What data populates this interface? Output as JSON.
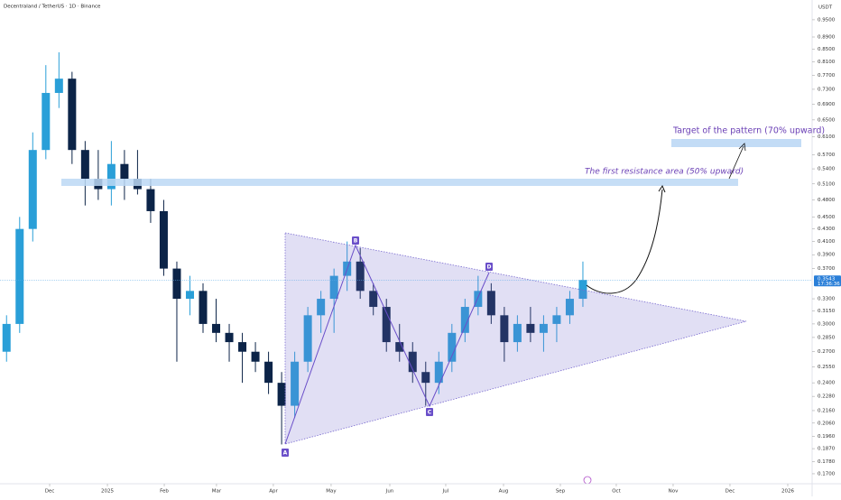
{
  "chart_data": {
    "type": "candlestick",
    "title": "Decentraland / TetherUS · 1D · Binance",
    "y_axis_label": "USDT",
    "log_scale": true,
    "grid": false,
    "up_color": "#2a9fd8",
    "down_color": "#0c2448",
    "categories": [
      null,
      null,
      null,
      null,
      null,
      null,
      null,
      null,
      null,
      null,
      null,
      null,
      null,
      null,
      null,
      null,
      null,
      null,
      null,
      null,
      null,
      null,
      null,
      null,
      null,
      null,
      null,
      null,
      null,
      null,
      null,
      null,
      null,
      null,
      null,
      null,
      null,
      null,
      null,
      null,
      null,
      null,
      null,
      null,
      null
    ],
    "open": [
      0.27,
      0.3,
      0.43,
      0.58,
      0.72,
      0.76,
      0.58,
      0.52,
      0.5,
      0.55,
      0.52,
      0.5,
      0.46,
      0.37,
      0.33,
      0.34,
      0.3,
      0.29,
      0.28,
      0.27,
      0.26,
      0.24,
      0.22,
      0.26,
      0.31,
      0.33,
      0.36,
      0.38,
      0.34,
      0.32,
      0.28,
      0.27,
      0.25,
      0.24,
      0.26,
      0.29,
      0.32,
      0.34,
      0.31,
      0.28,
      0.3,
      0.29,
      0.3,
      0.31,
      0.33
    ],
    "high": [
      0.31,
      0.45,
      0.62,
      0.8,
      0.84,
      0.78,
      0.6,
      0.58,
      0.6,
      0.58,
      0.58,
      0.52,
      0.48,
      0.38,
      0.36,
      0.35,
      0.33,
      0.3,
      0.29,
      0.28,
      0.27,
      0.25,
      0.27,
      0.32,
      0.34,
      0.37,
      0.41,
      0.4,
      0.35,
      0.33,
      0.3,
      0.28,
      0.26,
      0.27,
      0.3,
      0.33,
      0.36,
      0.35,
      0.32,
      0.31,
      0.32,
      0.31,
      0.32,
      0.34,
      0.38
    ],
    "low": [
      0.26,
      0.29,
      0.41,
      0.56,
      0.68,
      0.55,
      0.47,
      0.48,
      0.47,
      0.48,
      0.49,
      0.44,
      0.36,
      0.26,
      0.31,
      0.29,
      0.28,
      0.26,
      0.24,
      0.25,
      0.23,
      0.19,
      0.21,
      0.25,
      0.29,
      0.29,
      0.34,
      0.33,
      0.31,
      0.27,
      0.26,
      0.24,
      0.22,
      0.23,
      0.25,
      0.28,
      0.31,
      0.3,
      0.26,
      0.27,
      0.28,
      0.27,
      0.28,
      0.3,
      0.32
    ],
    "close": [
      0.3,
      0.43,
      0.58,
      0.72,
      0.76,
      0.58,
      0.52,
      0.5,
      0.55,
      0.52,
      0.5,
      0.46,
      0.37,
      0.33,
      0.34,
      0.3,
      0.29,
      0.28,
      0.27,
      0.26,
      0.24,
      0.22,
      0.26,
      0.31,
      0.33,
      0.36,
      0.38,
      0.34,
      0.32,
      0.28,
      0.27,
      0.25,
      0.24,
      0.26,
      0.29,
      0.32,
      0.34,
      0.31,
      0.28,
      0.3,
      0.29,
      0.3,
      0.31,
      0.33,
      0.3543
    ],
    "xlim": [
      -0.5,
      61.5
    ],
    "xticks": [
      {
        "value": 3.29,
        "label": "Dec"
      },
      {
        "value": 7.7,
        "label": "2025"
      },
      {
        "value": 12.04,
        "label": "Feb"
      },
      {
        "value": 16.03,
        "label": "Mar"
      },
      {
        "value": 20.37,
        "label": "Apr"
      },
      {
        "value": 24.78,
        "label": "May"
      },
      {
        "value": 29.26,
        "label": "Jun"
      },
      {
        "value": 33.53,
        "label": "Jul"
      },
      {
        "value": 37.94,
        "label": "Aug"
      },
      {
        "value": 42.28,
        "label": "Sep"
      },
      {
        "value": 46.55,
        "label": "Oct"
      },
      {
        "value": 50.89,
        "label": "Nov"
      },
      {
        "value": 55.23,
        "label": "Dec"
      },
      {
        "value": 59.64,
        "label": "2026"
      }
    ],
    "ylim": [
      0.1637,
      1.024
    ],
    "yticks": [
      {
        "value": 0.95,
        "label": "0.9500"
      },
      {
        "value": 0.89,
        "label": "0.8900"
      },
      {
        "value": 0.85,
        "label": "0.8500"
      },
      {
        "value": 0.81,
        "label": "0.8100"
      },
      {
        "value": 0.77,
        "label": "0.7700"
      },
      {
        "value": 0.73,
        "label": "0.7300"
      },
      {
        "value": 0.69,
        "label": "0.6900"
      },
      {
        "value": 0.65,
        "label": "0.6500"
      },
      {
        "value": 0.61,
        "label": "0.6100"
      },
      {
        "value": 0.57,
        "label": "0.5700"
      },
      {
        "value": 0.54,
        "label": "0.5400"
      },
      {
        "value": 0.51,
        "label": "0.5100"
      },
      {
        "value": 0.48,
        "label": "0.4800"
      },
      {
        "value": 0.45,
        "label": "0.4500"
      },
      {
        "value": 0.43,
        "label": "0.4300"
      },
      {
        "value": 0.41,
        "label": "0.4100"
      },
      {
        "value": 0.39,
        "label": "0.3900"
      },
      {
        "value": 0.37,
        "label": "0.3700"
      },
      {
        "value": 0.33,
        "label": "0.3300"
      },
      {
        "value": 0.315,
        "label": "0.3150"
      },
      {
        "value": 0.3,
        "label": "0.3000"
      },
      {
        "value": 0.285,
        "label": "0.2850"
      },
      {
        "value": 0.27,
        "label": "0.2700"
      },
      {
        "value": 0.255,
        "label": "0.2550"
      },
      {
        "value": 0.24,
        "label": "0.2400"
      },
      {
        "value": 0.228,
        "label": "0.2280"
      },
      {
        "value": 0.216,
        "label": "0.2160"
      },
      {
        "value": 0.206,
        "label": "0.2060"
      },
      {
        "value": 0.196,
        "label": "0.1960"
      },
      {
        "value": 0.187,
        "label": "0.1870"
      },
      {
        "value": 0.178,
        "label": "0.1780"
      },
      {
        "value": 0.17,
        "label": "0.1700"
      }
    ],
    "last_price": 0.3543,
    "countdown": "17:36:36",
    "annotations": [
      "A",
      "B",
      "C",
      "D",
      "The first resistance area (50% upward)",
      "Target of the pattern (70% upward)"
    ]
  }
}
